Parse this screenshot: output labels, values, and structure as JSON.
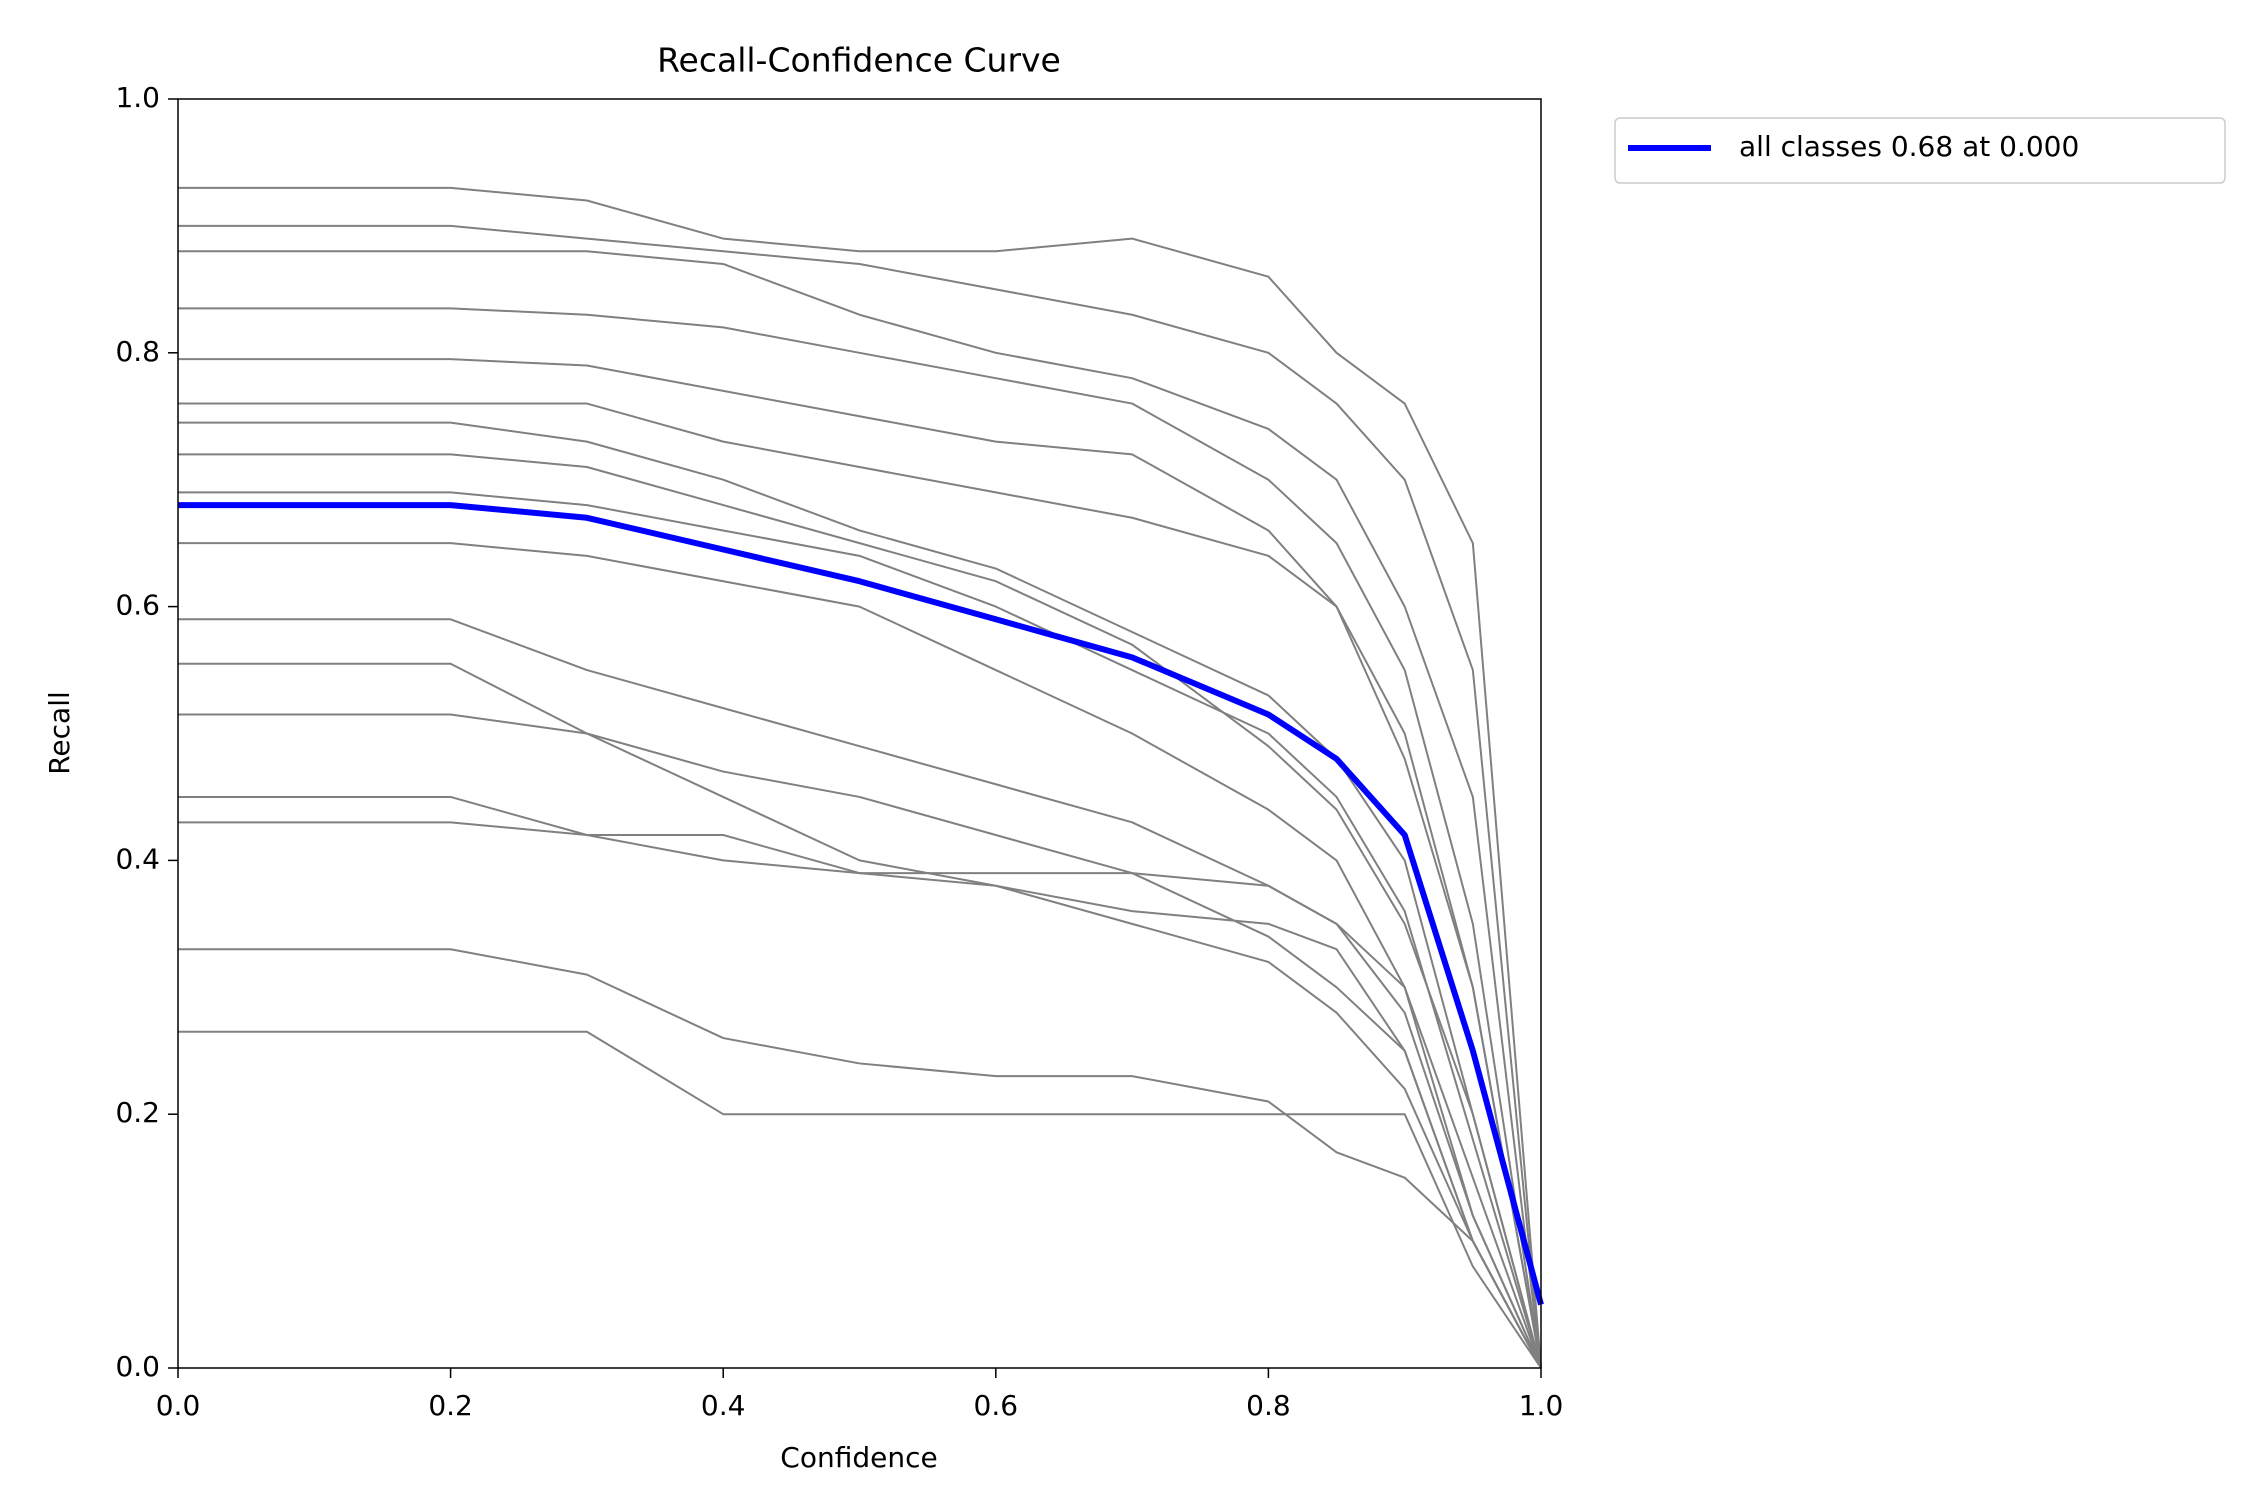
{
  "chart_data": {
    "type": "line",
    "title": "Recall-Confidence Curve",
    "x_label": "Confidence",
    "y_label": "Recall",
    "x": [
      0,
      0.1,
      0.2,
      0.3,
      0.4,
      0.5,
      0.6,
      0.7,
      0.8,
      0.85,
      0.9,
      0.95,
      1.0
    ],
    "series": [
      {
        "color": "#808080",
        "values": [
          0.93,
          0.93,
          0.93,
          0.92,
          0.89,
          0.88,
          0.88,
          0.89,
          0.86,
          0.8,
          0.76,
          0.65,
          0.0
        ]
      },
      {
        "color": "#808080",
        "values": [
          0.9,
          0.9,
          0.9,
          0.89,
          0.88,
          0.87,
          0.85,
          0.83,
          0.8,
          0.76,
          0.7,
          0.55,
          0.0
        ]
      },
      {
        "color": "#808080",
        "values": [
          0.88,
          0.88,
          0.88,
          0.88,
          0.87,
          0.83,
          0.8,
          0.78,
          0.74,
          0.7,
          0.6,
          0.45,
          0.0
        ]
      },
      {
        "color": "#808080",
        "values": [
          0.835,
          0.835,
          0.835,
          0.83,
          0.82,
          0.8,
          0.78,
          0.76,
          0.7,
          0.65,
          0.55,
          0.35,
          0.0
        ]
      },
      {
        "color": "#808080",
        "values": [
          0.795,
          0.795,
          0.795,
          0.79,
          0.77,
          0.75,
          0.73,
          0.72,
          0.66,
          0.6,
          0.48,
          0.3,
          0.0
        ]
      },
      {
        "color": "#808080",
        "values": [
          0.76,
          0.76,
          0.76,
          0.76,
          0.73,
          0.71,
          0.69,
          0.67,
          0.64,
          0.6,
          0.5,
          0.3,
          0.0
        ]
      },
      {
        "color": "#808080",
        "values": [
          0.745,
          0.745,
          0.745,
          0.73,
          0.7,
          0.66,
          0.63,
          0.58,
          0.53,
          0.48,
          0.4,
          0.2,
          0.0
        ]
      },
      {
        "color": "#808080",
        "values": [
          0.72,
          0.72,
          0.72,
          0.71,
          0.68,
          0.65,
          0.62,
          0.57,
          0.49,
          0.44,
          0.35,
          0.2,
          0.0
        ]
      },
      {
        "color": "#808080",
        "values": [
          0.69,
          0.69,
          0.69,
          0.68,
          0.66,
          0.64,
          0.6,
          0.55,
          0.5,
          0.45,
          0.36,
          0.18,
          0.0
        ]
      },
      {
        "color": "#808080",
        "values": [
          0.65,
          0.65,
          0.65,
          0.64,
          0.62,
          0.6,
          0.55,
          0.5,
          0.44,
          0.4,
          0.3,
          0.15,
          0.0
        ]
      },
      {
        "color": "#808080",
        "values": [
          0.59,
          0.59,
          0.59,
          0.55,
          0.52,
          0.49,
          0.46,
          0.43,
          0.38,
          0.35,
          0.28,
          0.12,
          0.0
        ]
      },
      {
        "color": "#808080",
        "values": [
          0.555,
          0.555,
          0.555,
          0.5,
          0.47,
          0.45,
          0.42,
          0.39,
          0.34,
          0.3,
          0.25,
          0.1,
          0.0
        ]
      },
      {
        "color": "#808080",
        "values": [
          0.515,
          0.515,
          0.515,
          0.5,
          0.45,
          0.4,
          0.38,
          0.35,
          0.32,
          0.28,
          0.22,
          0.1,
          0.0
        ]
      },
      {
        "color": "#808080",
        "values": [
          0.45,
          0.45,
          0.45,
          0.42,
          0.42,
          0.39,
          0.38,
          0.36,
          0.35,
          0.33,
          0.25,
          0.1,
          0.0
        ]
      },
      {
        "color": "#808080",
        "values": [
          0.43,
          0.43,
          0.43,
          0.42,
          0.4,
          0.39,
          0.39,
          0.39,
          0.38,
          0.35,
          0.3,
          0.12,
          0.0
        ]
      },
      {
        "color": "#808080",
        "values": [
          0.33,
          0.33,
          0.33,
          0.31,
          0.26,
          0.24,
          0.23,
          0.23,
          0.21,
          0.17,
          0.15,
          0.1,
          0.0
        ]
      },
      {
        "color": "#808080",
        "values": [
          0.265,
          0.265,
          0.265,
          0.265,
          0.2,
          0.2,
          0.2,
          0.2,
          0.2,
          0.2,
          0.2,
          0.08,
          0.0
        ]
      },
      {
        "name": "all classes 0.68 at 0.000",
        "color": "#0000ff",
        "values": [
          0.68,
          0.68,
          0.68,
          0.67,
          0.645,
          0.62,
          0.59,
          0.56,
          0.515,
          0.48,
          0.42,
          0.25,
          0.05
        ]
      }
    ],
    "xlim": [
      0,
      1
    ],
    "ylim": [
      0,
      1
    ],
    "xticks": [
      {
        "value": 0,
        "label": "0.0"
      },
      0.2,
      0.4,
      0.6,
      0.8,
      {
        "value": 1,
        "label": "1.0"
      }
    ],
    "yticks": [
      {
        "value": 0,
        "label": "0.0"
      },
      0.2,
      0.4,
      0.6,
      0.8,
      {
        "value": 1,
        "label": "1.0"
      }
    ],
    "legend": "outside upper right"
  }
}
